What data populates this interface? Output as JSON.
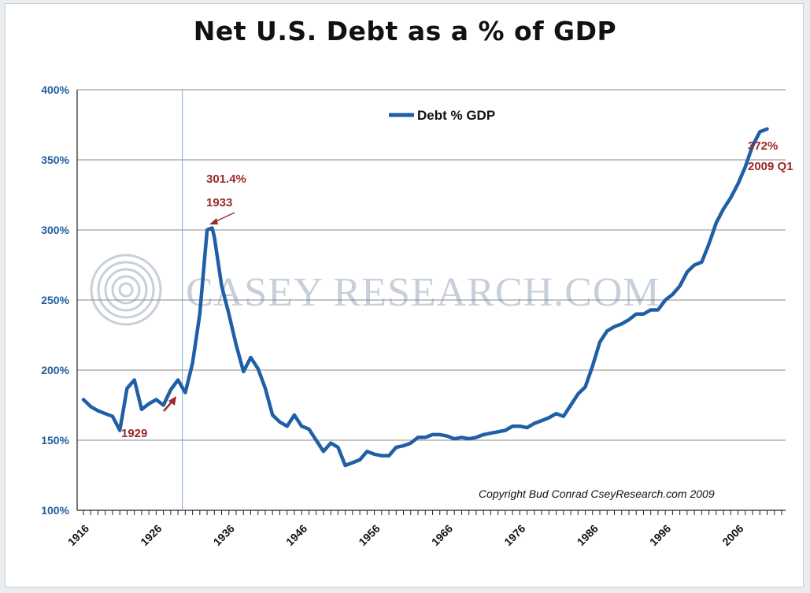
{
  "chart_data": {
    "type": "line",
    "title": "Net U.S. Debt as a % of GDP",
    "xlabel": "",
    "ylabel": "",
    "ylim": [
      100,
      400
    ],
    "y_ticks": [
      "100%",
      "150%",
      "200%",
      "250%",
      "300%",
      "350%",
      "400%"
    ],
    "x_tick_labels": [
      "1916",
      "1926",
      "1936",
      "1946",
      "1956",
      "1966",
      "1976",
      "1986",
      "1996",
      "2006"
    ],
    "xlim": [
      1916,
      2012
    ],
    "grid": "horizontal",
    "legend_position": "top-center",
    "series": [
      {
        "name": "Debt % GDP",
        "color": "#1f5fa6",
        "points": [
          [
            1916,
            179
          ],
          [
            1917,
            174
          ],
          [
            1918,
            171
          ],
          [
            1919,
            169
          ],
          [
            1920,
            167
          ],
          [
            1921,
            157
          ],
          [
            1922,
            187
          ],
          [
            1923,
            193
          ],
          [
            1924,
            172
          ],
          [
            1925,
            176
          ],
          [
            1926,
            179
          ],
          [
            1927,
            175
          ],
          [
            1928,
            186
          ],
          [
            1929,
            193
          ],
          [
            1930,
            184
          ],
          [
            1931,
            205
          ],
          [
            1932,
            240
          ],
          [
            1933,
            300
          ],
          [
            1933.7,
            301.4
          ],
          [
            1934,
            295
          ],
          [
            1935,
            260
          ],
          [
            1936,
            240
          ],
          [
            1937,
            218
          ],
          [
            1938,
            199
          ],
          [
            1939,
            209
          ],
          [
            1940,
            201
          ],
          [
            1941,
            187
          ],
          [
            1942,
            168
          ],
          [
            1943,
            163
          ],
          [
            1944,
            160
          ],
          [
            1945,
            168
          ],
          [
            1946,
            160
          ],
          [
            1947,
            158
          ],
          [
            1948,
            150
          ],
          [
            1949,
            142
          ],
          [
            1950,
            148
          ],
          [
            1951,
            145
          ],
          [
            1952,
            132
          ],
          [
            1953,
            134
          ],
          [
            1954,
            136
          ],
          [
            1955,
            142
          ],
          [
            1956,
            140
          ],
          [
            1957,
            139
          ],
          [
            1958,
            139
          ],
          [
            1959,
            145
          ],
          [
            1960,
            146
          ],
          [
            1961,
            148
          ],
          [
            1962,
            152
          ],
          [
            1963,
            152
          ],
          [
            1964,
            154
          ],
          [
            1965,
            154
          ],
          [
            1966,
            153
          ],
          [
            1967,
            151
          ],
          [
            1968,
            152
          ],
          [
            1969,
            151
          ],
          [
            1970,
            152
          ],
          [
            1971,
            154
          ],
          [
            1972,
            155
          ],
          [
            1973,
            156
          ],
          [
            1974,
            157
          ],
          [
            1975,
            160
          ],
          [
            1976,
            160
          ],
          [
            1977,
            159
          ],
          [
            1978,
            162
          ],
          [
            1979,
            164
          ],
          [
            1980,
            166
          ],
          [
            1981,
            169
          ],
          [
            1982,
            167
          ],
          [
            1983,
            175
          ],
          [
            1984,
            183
          ],
          [
            1985,
            188
          ],
          [
            1986,
            203
          ],
          [
            1987,
            220
          ],
          [
            1988,
            228
          ],
          [
            1989,
            231
          ],
          [
            1990,
            233
          ],
          [
            1991,
            236
          ],
          [
            1992,
            240
          ],
          [
            1993,
            240
          ],
          [
            1994,
            243
          ],
          [
            1995,
            243
          ],
          [
            1996,
            250
          ],
          [
            1997,
            254
          ],
          [
            1998,
            260
          ],
          [
            1999,
            270
          ],
          [
            2000,
            275
          ],
          [
            2001,
            277
          ],
          [
            2002,
            290
          ],
          [
            2003,
            305
          ],
          [
            2004,
            315
          ],
          [
            2005,
            323
          ],
          [
            2006,
            333
          ],
          [
            2007,
            345
          ],
          [
            2008,
            360
          ],
          [
            2009,
            370
          ],
          [
            2010,
            372
          ]
        ]
      }
    ],
    "annotations": [
      {
        "text": "1929",
        "color": "#9b2a2a"
      },
      {
        "line1": "301.4%",
        "line2": "1933",
        "color": "#9b2a2a"
      },
      {
        "line1": "372%",
        "line2": "2009 Q1",
        "color": "#9b2a2a"
      }
    ],
    "copyright": "Copyright Bud Conrad CseyResearch.com 2009",
    "watermark": "CASEY RESEARCH.COM"
  }
}
